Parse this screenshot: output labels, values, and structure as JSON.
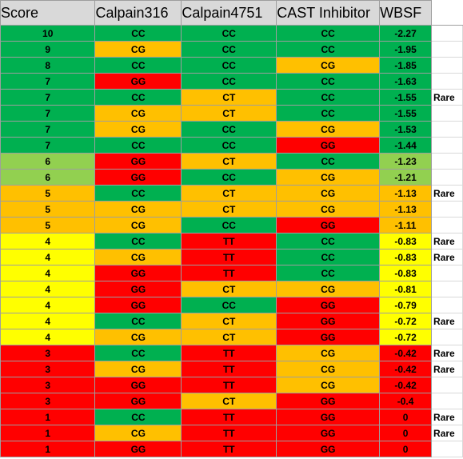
{
  "colors": {
    "green": "#00b050",
    "orange": "#ffc000",
    "red": "#ff0000",
    "yellow": "#ffff00",
    "lightgreen": "#92d050",
    "header_gray": "#d9d9d9"
  },
  "headers": [
    "Score",
    "Calpain316",
    "Calpain4751",
    "CAST Inhibitor",
    "WBSF",
    ""
  ],
  "rows": [
    {
      "score": "10",
      "c316": "CC",
      "c4751": "CC",
      "cast": "CC",
      "wbsf": "-2.27",
      "note": "",
      "colors": [
        "green",
        "green",
        "green",
        "green",
        "green"
      ]
    },
    {
      "score": "9",
      "c316": "CG",
      "c4751": "CC",
      "cast": "CC",
      "wbsf": "-1.95",
      "note": "",
      "colors": [
        "green",
        "orange",
        "green",
        "green",
        "green"
      ]
    },
    {
      "score": "8",
      "c316": "CC",
      "c4751": "CC",
      "cast": "CG",
      "wbsf": "-1.85",
      "note": "",
      "colors": [
        "green",
        "green",
        "green",
        "orange",
        "green"
      ]
    },
    {
      "score": "7",
      "c316": "GG",
      "c4751": "CC",
      "cast": "CC",
      "wbsf": "-1.63",
      "note": "",
      "colors": [
        "green",
        "red",
        "green",
        "green",
        "green"
      ]
    },
    {
      "score": "7",
      "c316": "CC",
      "c4751": "CT",
      "cast": "CC",
      "wbsf": "-1.55",
      "note": "Rare",
      "colors": [
        "green",
        "green",
        "orange",
        "green",
        "green"
      ]
    },
    {
      "score": "7",
      "c316": "CG",
      "c4751": "CT",
      "cast": "CC",
      "wbsf": "-1.55",
      "note": "",
      "colors": [
        "green",
        "orange",
        "orange",
        "green",
        "green"
      ]
    },
    {
      "score": "7",
      "c316": "CG",
      "c4751": "CC",
      "cast": "CG",
      "wbsf": "-1.53",
      "note": "",
      "colors": [
        "green",
        "orange",
        "green",
        "orange",
        "green"
      ]
    },
    {
      "score": "7",
      "c316": "CC",
      "c4751": "CC",
      "cast": "GG",
      "wbsf": "-1.44",
      "note": "",
      "colors": [
        "green",
        "green",
        "green",
        "red",
        "green"
      ]
    },
    {
      "score": "6",
      "c316": "GG",
      "c4751": "CT",
      "cast": "CC",
      "wbsf": "-1.23",
      "note": "",
      "colors": [
        "lightgreen",
        "red",
        "orange",
        "green",
        "lightgreen"
      ]
    },
    {
      "score": "6",
      "c316": "GG",
      "c4751": "CC",
      "cast": "CG",
      "wbsf": "-1.21",
      "note": "",
      "colors": [
        "lightgreen",
        "red",
        "green",
        "orange",
        "lightgreen"
      ]
    },
    {
      "score": "5",
      "c316": "CC",
      "c4751": "CT",
      "cast": "CG",
      "wbsf": "-1.13",
      "note": "Rare",
      "colors": [
        "orange",
        "green",
        "orange",
        "orange",
        "orange"
      ]
    },
    {
      "score": "5",
      "c316": "CG",
      "c4751": "CT",
      "cast": "CG",
      "wbsf": "-1.13",
      "note": "",
      "colors": [
        "orange",
        "orange",
        "orange",
        "orange",
        "orange"
      ]
    },
    {
      "score": "5",
      "c316": "CG",
      "c4751": "CC",
      "cast": "GG",
      "wbsf": "-1.11",
      "note": "",
      "colors": [
        "orange",
        "orange",
        "green",
        "red",
        "orange"
      ]
    },
    {
      "score": "4",
      "c316": "CC",
      "c4751": "TT",
      "cast": "CC",
      "wbsf": "-0.83",
      "note": "Rare",
      "colors": [
        "yellow",
        "green",
        "red",
        "green",
        "yellow"
      ]
    },
    {
      "score": "4",
      "c316": "CG",
      "c4751": "TT",
      "cast": "CC",
      "wbsf": "-0.83",
      "note": "Rare",
      "colors": [
        "yellow",
        "orange",
        "red",
        "green",
        "yellow"
      ]
    },
    {
      "score": "4",
      "c316": "GG",
      "c4751": "TT",
      "cast": "CC",
      "wbsf": "-0.83",
      "note": "",
      "colors": [
        "yellow",
        "red",
        "red",
        "green",
        "yellow"
      ]
    },
    {
      "score": "4",
      "c316": "GG",
      "c4751": "CT",
      "cast": "CG",
      "wbsf": "-0.81",
      "note": "",
      "colors": [
        "yellow",
        "red",
        "orange",
        "orange",
        "yellow"
      ]
    },
    {
      "score": "4",
      "c316": "GG",
      "c4751": "CC",
      "cast": "GG",
      "wbsf": "-0.79",
      "note": "",
      "colors": [
        "yellow",
        "red",
        "green",
        "red",
        "yellow"
      ]
    },
    {
      "score": "4",
      "c316": "CC",
      "c4751": "CT",
      "cast": "GG",
      "wbsf": "-0.72",
      "note": "Rare",
      "colors": [
        "yellow",
        "green",
        "orange",
        "red",
        "yellow"
      ]
    },
    {
      "score": "4",
      "c316": "CG",
      "c4751": "CT",
      "cast": "GG",
      "wbsf": "-0.72",
      "note": "",
      "colors": [
        "yellow",
        "orange",
        "orange",
        "red",
        "yellow"
      ]
    },
    {
      "score": "3",
      "c316": "CC",
      "c4751": "TT",
      "cast": "CG",
      "wbsf": "-0.42",
      "note": "Rare",
      "colors": [
        "red",
        "green",
        "red",
        "orange",
        "red"
      ]
    },
    {
      "score": "3",
      "c316": "CG",
      "c4751": "TT",
      "cast": "CG",
      "wbsf": "-0.42",
      "note": "Rare",
      "colors": [
        "red",
        "orange",
        "red",
        "orange",
        "red"
      ]
    },
    {
      "score": "3",
      "c316": "GG",
      "c4751": "TT",
      "cast": "CG",
      "wbsf": "-0.42",
      "note": "",
      "colors": [
        "red",
        "red",
        "red",
        "orange",
        "red"
      ]
    },
    {
      "score": "3",
      "c316": "GG",
      "c4751": "CT",
      "cast": "GG",
      "wbsf": "-0.4",
      "note": "",
      "colors": [
        "red",
        "red",
        "orange",
        "red",
        "red"
      ]
    },
    {
      "score": "1",
      "c316": "CC",
      "c4751": "TT",
      "cast": "GG",
      "wbsf": "0",
      "note": "Rare",
      "colors": [
        "red",
        "green",
        "red",
        "red",
        "red"
      ]
    },
    {
      "score": "1",
      "c316": "CG",
      "c4751": "TT",
      "cast": "GG",
      "wbsf": "0",
      "note": "Rare",
      "colors": [
        "red",
        "orange",
        "red",
        "red",
        "red"
      ]
    },
    {
      "score": "1",
      "c316": "GG",
      "c4751": "TT",
      "cast": "GG",
      "wbsf": "0",
      "note": "",
      "colors": [
        "red",
        "red",
        "red",
        "red",
        "red"
      ]
    }
  ]
}
